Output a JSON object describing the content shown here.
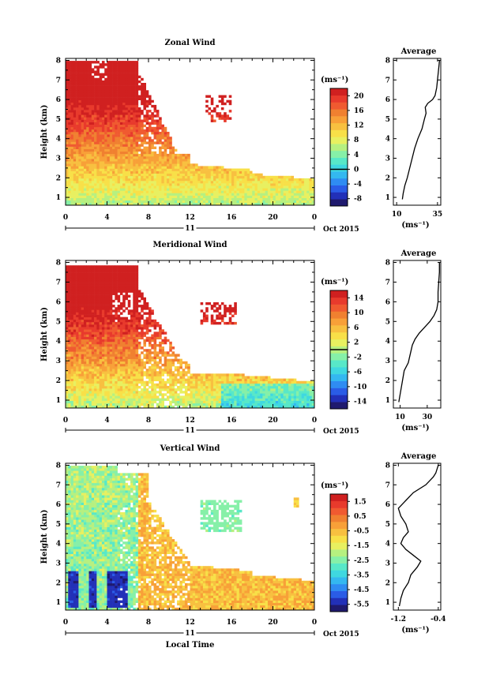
{
  "figure": {
    "xlabel": "Local Time",
    "date_label": "Oct 2015",
    "day_label": "11"
  },
  "colors": {
    "colorbar_scale": [
      "#1f1a6e",
      "#2230b8",
      "#2a5ce6",
      "#2f8cf2",
      "#34b8f0",
      "#3fd8e0",
      "#58e8c8",
      "#86f0a8",
      "#b6f080",
      "#e8f060",
      "#f8e048",
      "#f8c040",
      "#f8a038",
      "#f08030",
      "#f05a30",
      "#e83a2c",
      "#d02020"
    ],
    "zero_line": "#000000",
    "background": "#ffffff"
  },
  "chart_data": [
    {
      "type": "heatmap",
      "title": "Zonal Wind",
      "ylabel": "Height (km)",
      "xlim": [
        0,
        24
      ],
      "ylim": [
        0.6,
        8.1
      ],
      "xticks": [
        "0",
        "4",
        "8",
        "12",
        "16",
        "20",
        "0"
      ],
      "yticks": [
        "1",
        "2",
        "3",
        "4",
        "5",
        "6",
        "7",
        "8"
      ],
      "colorbar": {
        "unit": "(ms⁻¹)",
        "ticks": [
          "20",
          "16",
          "12",
          "8",
          "4",
          "0",
          "-4",
          "-8"
        ],
        "range": [
          -10,
          22
        ],
        "zero_line": 0
      },
      "average": {
        "title": "Average",
        "xlabel": "(ms⁻¹)",
        "xticks": [
          "10",
          "35"
        ],
        "xlim": [
          8,
          37
        ],
        "profile": [
          [
            0.9,
            13.5
          ],
          [
            1.2,
            14
          ],
          [
            1.6,
            15
          ],
          [
            2.0,
            16.5
          ],
          [
            2.5,
            18
          ],
          [
            3.0,
            19.5
          ],
          [
            3.5,
            21
          ],
          [
            4.0,
            23
          ],
          [
            4.5,
            25.5
          ],
          [
            5.0,
            27
          ],
          [
            5.3,
            28
          ],
          [
            5.6,
            27.5
          ],
          [
            5.8,
            29
          ],
          [
            6.0,
            32
          ],
          [
            6.2,
            33.5
          ],
          [
            6.6,
            34.5
          ],
          [
            7.0,
            35
          ],
          [
            7.4,
            35.5
          ],
          [
            7.8,
            36
          ],
          [
            8.0,
            36.2
          ]
        ]
      }
    },
    {
      "type": "heatmap",
      "title": "Meridional Wind",
      "ylabel": "Height (km)",
      "xlim": [
        0,
        24
      ],
      "ylim": [
        0.6,
        8.1
      ],
      "xticks": [
        "0",
        "4",
        "8",
        "12",
        "16",
        "20",
        "0"
      ],
      "yticks": [
        "1",
        "2",
        "3",
        "4",
        "5",
        "6",
        "7",
        "8"
      ],
      "colorbar": {
        "unit": "(ms⁻¹)",
        "ticks": [
          "14",
          "10",
          "6",
          "2",
          "-2",
          "-6",
          "-10",
          "-14"
        ],
        "range": [
          -16,
          16
        ],
        "zero_line": 0
      },
      "average": {
        "title": "Average",
        "xlabel": "(ms⁻¹)",
        "xticks": [
          "10",
          "30"
        ],
        "xlim": [
          5,
          40
        ],
        "profile": [
          [
            0.9,
            9
          ],
          [
            1.3,
            10
          ],
          [
            1.7,
            11
          ],
          [
            2.1,
            12
          ],
          [
            2.5,
            13
          ],
          [
            2.9,
            16
          ],
          [
            3.2,
            17
          ],
          [
            3.5,
            18
          ],
          [
            3.8,
            19
          ],
          [
            4.1,
            21
          ],
          [
            4.4,
            24
          ],
          [
            4.7,
            28
          ],
          [
            5.0,
            32
          ],
          [
            5.3,
            35
          ],
          [
            5.6,
            37
          ],
          [
            6.0,
            38
          ],
          [
            6.5,
            38
          ],
          [
            7.0,
            38.5
          ],
          [
            7.5,
            39
          ],
          [
            8.0,
            39
          ]
        ]
      }
    },
    {
      "type": "heatmap",
      "title": "Vertical Wind",
      "ylabel": "Height (km)",
      "xlabel": "Local Time",
      "xlim": [
        0,
        24
      ],
      "ylim": [
        0.6,
        8.1
      ],
      "xticks": [
        "0",
        "4",
        "8",
        "12",
        "16",
        "20",
        "0"
      ],
      "yticks": [
        "1",
        "2",
        "3",
        "4",
        "5",
        "6",
        "7",
        "8"
      ],
      "colorbar": {
        "unit": "(ms⁻¹)",
        "ticks": [
          "1.5",
          "0.5",
          "-0.5",
          "-1.5",
          "-2.5",
          "-3.5",
          "-4.5",
          "-5.5"
        ],
        "range": [
          -6.0,
          2.0
        ]
      },
      "average": {
        "title": "Average",
        "xlabel": "(ms⁻¹)",
        "xticks": [
          "-1.2",
          "-0.4"
        ],
        "xlim": [
          -1.3,
          -0.35
        ],
        "profile": [
          [
            0.8,
            -1.18
          ],
          [
            1.2,
            -1.15
          ],
          [
            1.6,
            -1.1
          ],
          [
            2.0,
            -1.0
          ],
          [
            2.4,
            -0.95
          ],
          [
            2.8,
            -0.82
          ],
          [
            3.1,
            -0.75
          ],
          [
            3.4,
            -0.9
          ],
          [
            3.7,
            -1.05
          ],
          [
            4.0,
            -1.15
          ],
          [
            4.3,
            -1.1
          ],
          [
            4.6,
            -1.0
          ],
          [
            5.0,
            -1.05
          ],
          [
            5.4,
            -1.15
          ],
          [
            5.8,
            -1.2
          ],
          [
            6.2,
            -1.05
          ],
          [
            6.6,
            -0.9
          ],
          [
            7.0,
            -0.65
          ],
          [
            7.4,
            -0.5
          ],
          [
            7.6,
            -0.45
          ],
          [
            8.0,
            -0.4
          ]
        ]
      }
    }
  ]
}
